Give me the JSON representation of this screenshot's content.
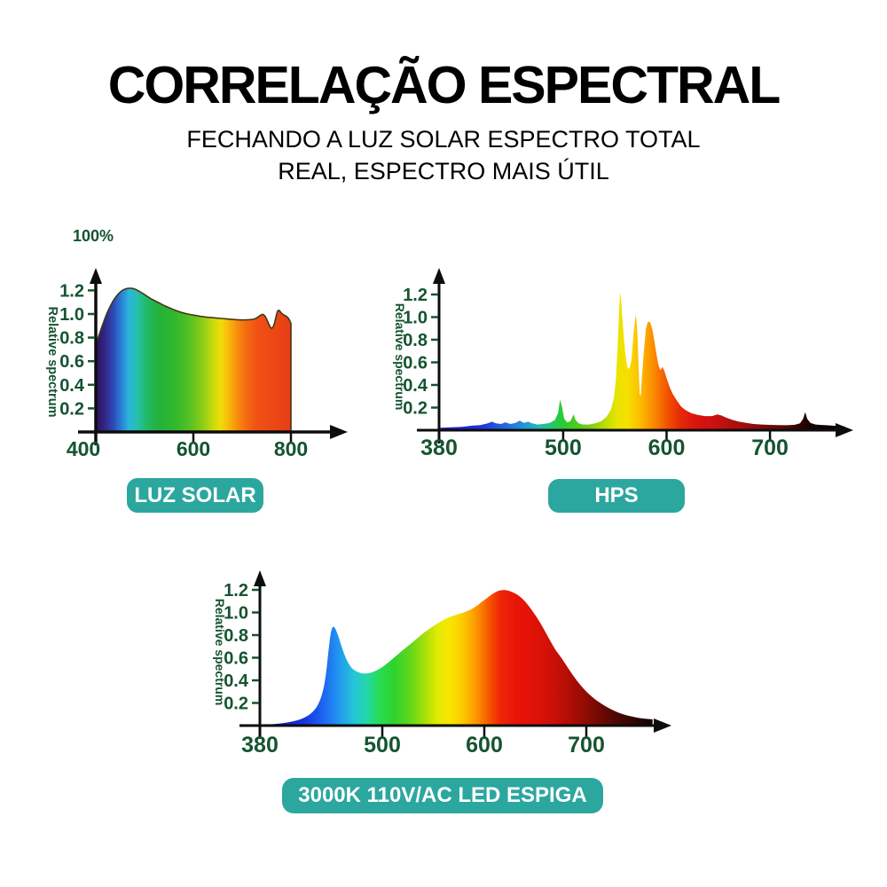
{
  "header": {
    "title": "CORRELAÇÃO ESPECTRAL",
    "subtitle_line1": "FECHANDO A LUZ SOLAR ESPECTRO TOTAL",
    "subtitle_line2": "REAL, ESPECTRO MAIS ÚTIL"
  },
  "colors": {
    "heading_text": "#000000",
    "axis_line": "#0d0d0d",
    "axis_text_green": "#155430",
    "badge_background": "#2ca79f",
    "badge_text": "#ffffff",
    "page_background": "#ffffff"
  },
  "badges": [
    {
      "id": "sun",
      "label": "LUZ SOLAR"
    },
    {
      "id": "hps",
      "label": "HPS"
    },
    {
      "id": "led",
      "label": "3000K 110V/AC LED ESPIGA"
    }
  ],
  "chart_data": [
    {
      "id": "sun",
      "type": "area",
      "badge_label": "LUZ SOLAR",
      "corner_label": "100%",
      "ylabel": "Relative spectrum",
      "xlabel": "",
      "x_range": [
        400,
        800
      ],
      "ylim": [
        0,
        1.3
      ],
      "yticks": [
        0.2,
        0.4,
        0.6,
        0.8,
        1.0,
        1.2
      ],
      "xticks": [
        400,
        600,
        800
      ],
      "grid": false,
      "legend": "none",
      "outline_stroke": "#403a14",
      "points": [
        [
          400,
          0.74
        ],
        [
          404,
          0.79
        ],
        [
          409,
          0.85
        ],
        [
          415,
          0.92
        ],
        [
          422,
          1.0
        ],
        [
          430,
          1.07
        ],
        [
          438,
          1.13
        ],
        [
          446,
          1.17
        ],
        [
          454,
          1.2
        ],
        [
          462,
          1.215
        ],
        [
          470,
          1.22
        ],
        [
          478,
          1.215
        ],
        [
          486,
          1.2
        ],
        [
          494,
          1.18
        ],
        [
          502,
          1.16
        ],
        [
          512,
          1.13
        ],
        [
          522,
          1.11
        ],
        [
          534,
          1.085
        ],
        [
          546,
          1.06
        ],
        [
          558,
          1.04
        ],
        [
          570,
          1.02
        ],
        [
          582,
          1.005
        ],
        [
          594,
          0.995
        ],
        [
          608,
          0.985
        ],
        [
          622,
          0.975
        ],
        [
          636,
          0.97
        ],
        [
          650,
          0.965
        ],
        [
          664,
          0.96
        ],
        [
          678,
          0.955
        ],
        [
          692,
          0.95
        ],
        [
          706,
          0.95
        ],
        [
          718,
          0.952
        ],
        [
          728,
          0.96
        ],
        [
          736,
          0.985
        ],
        [
          742,
          1.0
        ],
        [
          747,
          0.985
        ],
        [
          752,
          0.94
        ],
        [
          757,
          0.89
        ],
        [
          761,
          0.875
        ],
        [
          765,
          0.9
        ],
        [
          769,
          0.97
        ],
        [
          772,
          1.02
        ],
        [
          775,
          1.035
        ],
        [
          778,
          1.02
        ],
        [
          782,
          1.0
        ],
        [
          786,
          0.99
        ],
        [
          791,
          0.98
        ],
        [
          796,
          0.96
        ],
        [
          800,
          0.92
        ]
      ],
      "gradient_stops": [
        [
          400,
          "#2e0e60"
        ],
        [
          416,
          "#33227e"
        ],
        [
          436,
          "#2f49b8"
        ],
        [
          452,
          "#2a7fd6"
        ],
        [
          468,
          "#2ab5dc"
        ],
        [
          484,
          "#27bfae"
        ],
        [
          504,
          "#22b968"
        ],
        [
          528,
          "#23b23b"
        ],
        [
          560,
          "#30b72e"
        ],
        [
          592,
          "#55c022"
        ],
        [
          620,
          "#8ecd17"
        ],
        [
          640,
          "#c6da0b"
        ],
        [
          656,
          "#f0dc08"
        ],
        [
          672,
          "#f8b90a"
        ],
        [
          688,
          "#f8920e"
        ],
        [
          708,
          "#f56a12"
        ],
        [
          732,
          "#f05014"
        ],
        [
          800,
          "#e73e16"
        ]
      ]
    },
    {
      "id": "hps",
      "type": "area",
      "badge_label": "HPS",
      "corner_label": "",
      "ylabel": "Relative spectrum",
      "xlabel": "",
      "x_range": [
        380,
        772
      ],
      "ylim": [
        0,
        1.3
      ],
      "yticks": [
        0.2,
        0.4,
        0.6,
        0.8,
        1.0,
        1.2
      ],
      "xticks": [
        380,
        500,
        600,
        700
      ],
      "grid": false,
      "legend": "none",
      "outline_stroke": "",
      "points": [
        [
          380,
          0.02
        ],
        [
          392,
          0.025
        ],
        [
          402,
          0.03
        ],
        [
          412,
          0.04
        ],
        [
          420,
          0.045
        ],
        [
          427,
          0.06
        ],
        [
          431,
          0.075
        ],
        [
          435,
          0.06
        ],
        [
          440,
          0.055
        ],
        [
          444,
          0.07
        ],
        [
          449,
          0.055
        ],
        [
          454,
          0.065
        ],
        [
          458,
          0.085
        ],
        [
          462,
          0.065
        ],
        [
          466,
          0.075
        ],
        [
          470,
          0.06
        ],
        [
          475,
          0.05
        ],
        [
          481,
          0.055
        ],
        [
          487,
          0.065
        ],
        [
          492,
          0.09
        ],
        [
          495,
          0.15
        ],
        [
          497,
          0.27
        ],
        [
          499,
          0.2
        ],
        [
          501,
          0.1
        ],
        [
          504,
          0.07
        ],
        [
          507,
          0.08
        ],
        [
          510,
          0.14
        ],
        [
          512,
          0.09
        ],
        [
          515,
          0.06
        ],
        [
          519,
          0.05
        ],
        [
          525,
          0.05
        ],
        [
          531,
          0.06
        ],
        [
          537,
          0.08
        ],
        [
          542,
          0.12
        ],
        [
          546,
          0.18
        ],
        [
          549,
          0.28
        ],
        [
          551,
          0.45
        ],
        [
          553,
          0.8
        ],
        [
          554,
          1.05
        ],
        [
          555,
          1.22
        ],
        [
          556,
          1.15
        ],
        [
          558,
          0.9
        ],
        [
          560,
          0.68
        ],
        [
          562,
          0.56
        ],
        [
          564,
          0.54
        ],
        [
          566,
          0.62
        ],
        [
          568,
          0.85
        ],
        [
          570,
          1.02
        ],
        [
          571,
          0.97
        ],
        [
          572,
          0.8
        ],
        [
          573,
          0.55
        ],
        [
          574,
          0.32
        ],
        [
          575,
          0.3
        ],
        [
          576,
          0.45
        ],
        [
          578,
          0.7
        ],
        [
          580,
          0.9
        ],
        [
          582,
          0.96
        ],
        [
          584,
          0.955
        ],
        [
          586,
          0.9
        ],
        [
          588,
          0.8
        ],
        [
          590,
          0.68
        ],
        [
          592,
          0.58
        ],
        [
          594,
          0.53
        ],
        [
          596,
          0.56
        ],
        [
          598,
          0.52
        ],
        [
          600,
          0.46
        ],
        [
          603,
          0.38
        ],
        [
          606,
          0.32
        ],
        [
          610,
          0.26
        ],
        [
          614,
          0.21
        ],
        [
          618,
          0.18
        ],
        [
          624,
          0.15
        ],
        [
          630,
          0.135
        ],
        [
          637,
          0.125
        ],
        [
          644,
          0.125
        ],
        [
          649,
          0.14
        ],
        [
          653,
          0.13
        ],
        [
          658,
          0.11
        ],
        [
          664,
          0.09
        ],
        [
          670,
          0.075
        ],
        [
          677,
          0.065
        ],
        [
          684,
          0.055
        ],
        [
          692,
          0.05
        ],
        [
          700,
          0.047
        ],
        [
          708,
          0.045
        ],
        [
          716,
          0.044
        ],
        [
          724,
          0.048
        ],
        [
          729,
          0.06
        ],
        [
          732,
          0.1
        ],
        [
          734,
          0.16
        ],
        [
          736,
          0.1
        ],
        [
          739,
          0.065
        ],
        [
          744,
          0.05
        ],
        [
          750,
          0.046
        ],
        [
          758,
          0.042
        ],
        [
          765,
          0.038
        ],
        [
          772,
          0.034
        ]
      ],
      "gradient_stops": [
        [
          380,
          "#1818c8"
        ],
        [
          420,
          "#2030dd"
        ],
        [
          450,
          "#2277dd"
        ],
        [
          470,
          "#22aacc"
        ],
        [
          485,
          "#22c488"
        ],
        [
          497,
          "#25cc3a"
        ],
        [
          510,
          "#44cc22"
        ],
        [
          525,
          "#77cc11"
        ],
        [
          540,
          "#b8dd04"
        ],
        [
          552,
          "#e8e400"
        ],
        [
          562,
          "#f6df00"
        ],
        [
          572,
          "#fbc400"
        ],
        [
          582,
          "#fca000"
        ],
        [
          592,
          "#f87800"
        ],
        [
          602,
          "#f04e00"
        ],
        [
          614,
          "#e62808"
        ],
        [
          628,
          "#d91410"
        ],
        [
          645,
          "#cc1111"
        ],
        [
          662,
          "#b50f0f"
        ],
        [
          680,
          "#970c0c"
        ],
        [
          700,
          "#700909"
        ],
        [
          718,
          "#4a0707"
        ],
        [
          734,
          "#200303"
        ],
        [
          750,
          "#100202"
        ],
        [
          772,
          "#080101"
        ]
      ]
    },
    {
      "id": "led",
      "type": "area",
      "badge_label": "3000K 110V/AC LED ESPIGA",
      "corner_label": "",
      "ylabel": "Relative spectrum",
      "xlabel": "",
      "x_range": [
        380,
        765
      ],
      "ylim": [
        0,
        1.3
      ],
      "yticks": [
        0.2,
        0.4,
        0.6,
        0.8,
        1.0,
        1.2
      ],
      "xticks": [
        380,
        500,
        600,
        700
      ],
      "grid": false,
      "legend": "none",
      "outline_stroke": "",
      "points": [
        [
          380,
          0.008
        ],
        [
          392,
          0.012
        ],
        [
          402,
          0.02
        ],
        [
          412,
          0.035
        ],
        [
          420,
          0.055
        ],
        [
          427,
          0.085
        ],
        [
          432,
          0.12
        ],
        [
          437,
          0.18
        ],
        [
          441,
          0.27
        ],
        [
          444,
          0.4
        ],
        [
          446,
          0.55
        ],
        [
          448,
          0.72
        ],
        [
          450,
          0.85
        ],
        [
          452,
          0.88
        ],
        [
          454,
          0.86
        ],
        [
          457,
          0.79
        ],
        [
          460,
          0.7
        ],
        [
          464,
          0.6
        ],
        [
          468,
          0.53
        ],
        [
          472,
          0.49
        ],
        [
          477,
          0.468
        ],
        [
          482,
          0.458
        ],
        [
          487,
          0.462
        ],
        [
          492,
          0.478
        ],
        [
          497,
          0.5
        ],
        [
          503,
          0.535
        ],
        [
          510,
          0.59
        ],
        [
          518,
          0.65
        ],
        [
          526,
          0.71
        ],
        [
          534,
          0.77
        ],
        [
          542,
          0.83
        ],
        [
          550,
          0.88
        ],
        [
          558,
          0.925
        ],
        [
          566,
          0.96
        ],
        [
          574,
          0.985
        ],
        [
          582,
          1.005
        ],
        [
          590,
          1.04
        ],
        [
          597,
          1.09
        ],
        [
          603,
          1.13
        ],
        [
          608,
          1.165
        ],
        [
          613,
          1.19
        ],
        [
          618,
          1.2
        ],
        [
          623,
          1.195
        ],
        [
          628,
          1.18
        ],
        [
          634,
          1.15
        ],
        [
          640,
          1.1
        ],
        [
          646,
          1.03
        ],
        [
          652,
          0.95
        ],
        [
          658,
          0.86
        ],
        [
          664,
          0.76
        ],
        [
          669,
          0.68
        ],
        [
          673,
          0.63
        ],
        [
          677,
          0.58
        ],
        [
          682,
          0.51
        ],
        [
          688,
          0.43
        ],
        [
          694,
          0.36
        ],
        [
          700,
          0.3
        ],
        [
          706,
          0.25
        ],
        [
          712,
          0.21
        ],
        [
          718,
          0.175
        ],
        [
          724,
          0.145
        ],
        [
          730,
          0.12
        ],
        [
          736,
          0.1
        ],
        [
          742,
          0.085
        ],
        [
          748,
          0.073
        ],
        [
          755,
          0.062
        ],
        [
          765,
          0.055
        ]
      ],
      "gradient_stops": [
        [
          380,
          "#1013a8"
        ],
        [
          405,
          "#1320c8"
        ],
        [
          425,
          "#1738e0"
        ],
        [
          445,
          "#1e6ef2"
        ],
        [
          458,
          "#2299ee"
        ],
        [
          472,
          "#24c4d8"
        ],
        [
          485,
          "#23d8a8"
        ],
        [
          497,
          "#28dc55"
        ],
        [
          512,
          "#2ed32c"
        ],
        [
          528,
          "#64d81a"
        ],
        [
          542,
          "#a8e009"
        ],
        [
          554,
          "#e2ea02"
        ],
        [
          566,
          "#f8e600"
        ],
        [
          578,
          "#fccc00"
        ],
        [
          588,
          "#fda800"
        ],
        [
          598,
          "#fb7a00"
        ],
        [
          607,
          "#f54a02"
        ],
        [
          616,
          "#ee2506"
        ],
        [
          632,
          "#e81408"
        ],
        [
          650,
          "#df1207"
        ],
        [
          668,
          "#cc1007"
        ],
        [
          685,
          "#ad0d05"
        ],
        [
          702,
          "#8a0b04"
        ],
        [
          720,
          "#620804"
        ],
        [
          738,
          "#3e0603"
        ],
        [
          755,
          "#220402"
        ],
        [
          765,
          "#180302"
        ]
      ]
    }
  ]
}
